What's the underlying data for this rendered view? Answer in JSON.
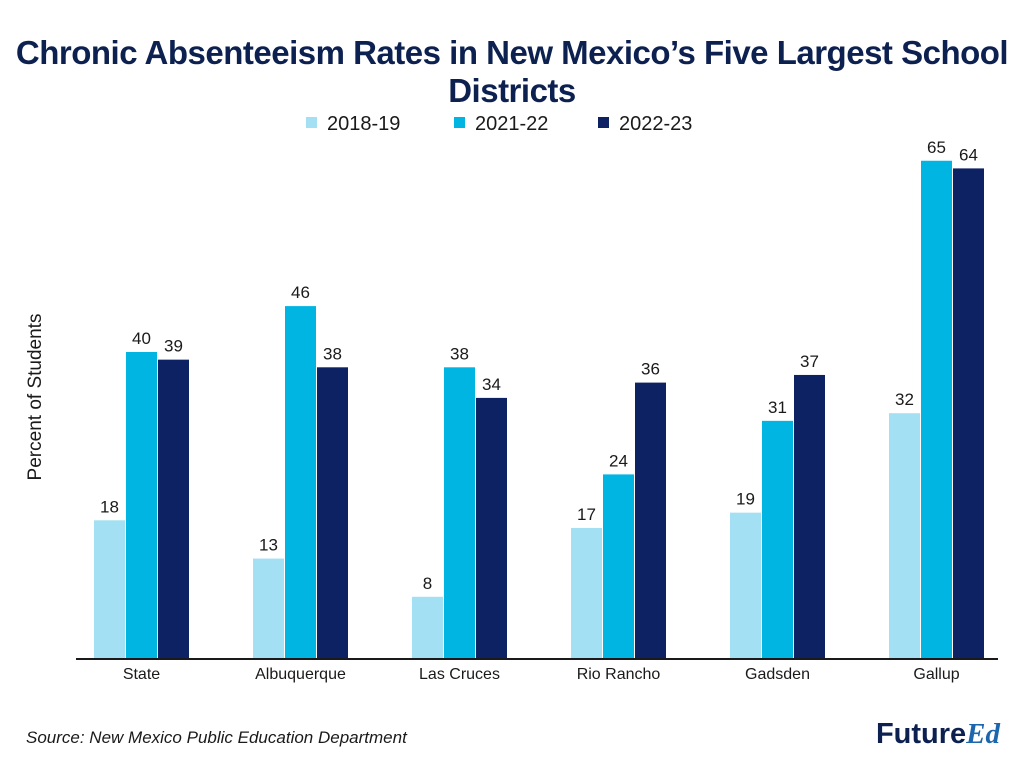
{
  "chart_data": {
    "type": "bar",
    "title": "Chronic Absenteeism Rates in New Mexico’s Five Largest School Districts",
    "ylabel": "Percent of Students",
    "xlabel": "",
    "categories": [
      "State",
      "Albuquerque",
      "Las Cruces",
      "Rio Rancho",
      "Gadsden",
      "Gallup"
    ],
    "series": [
      {
        "name": "2018-19",
        "color": "#a3e0f3",
        "values": [
          18,
          13,
          8,
          17,
          19,
          32
        ]
      },
      {
        "name": "2021-22",
        "color": "#00b5e2",
        "values": [
          40,
          46,
          38,
          24,
          31,
          65
        ]
      },
      {
        "name": "2022-23",
        "color": "#0d2263",
        "values": [
          39,
          38,
          34,
          36,
          37,
          64
        ]
      }
    ],
    "ylim": [
      0,
      70
    ],
    "grid": false,
    "legend_position": "top-center",
    "data_labels": true
  },
  "source": "Source: New Mexico Public Education Department",
  "brand": {
    "main": "Future",
    "accent": "Ed"
  }
}
